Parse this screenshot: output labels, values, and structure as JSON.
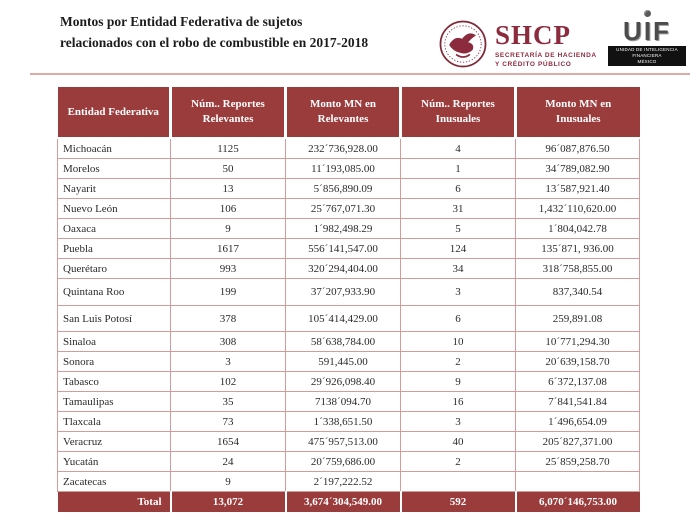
{
  "header": {
    "title_line1": "Montos por Entidad Federativa de sujetos",
    "title_line2": "relacionados con el robo de combustible en 2017-2018",
    "shcp": {
      "acronym": "SHCP",
      "subtitle_line1": "SECRETARÍA DE HACIENDA",
      "subtitle_line2": "Y CRÉDITO PÚBLICO"
    },
    "uif": {
      "acronym": "UIF",
      "bar_line1": "UNIDAD DE INTELIGENCIA FINANCIERA",
      "bar_line2": "MÉXICO"
    }
  },
  "colors": {
    "header_bg": "#9A3C3C",
    "cell_border": "#D79A9A",
    "maroon": "#8C2B3D",
    "divider": "#E2A9A9"
  },
  "table": {
    "columns": [
      "Entidad Federativa",
      "Núm.. Reportes Relevantes",
      "Monto MN en Relevantes",
      "Núm.. Reportes Inusuales",
      "Monto MN en Inusuales"
    ],
    "rows": [
      [
        "Michoacán",
        "1125",
        "232´736,928.00",
        "4",
        "96´087,876.50"
      ],
      [
        "Morelos",
        "50",
        "11´193,085.00",
        "1",
        "34´789,082.90"
      ],
      [
        "Nayarit",
        "13",
        "5´856,890.09",
        "6",
        "13´587,921.40"
      ],
      [
        "Nuevo León",
        "106",
        "25´767,071.30",
        "31",
        "1,432´110,620.00"
      ],
      [
        "Oaxaca",
        "9",
        "1´982,498.29",
        "5",
        "1´804,042.78"
      ],
      [
        "Puebla",
        "1617",
        "556´141,547.00",
        "124",
        "135´871, 936.00"
      ],
      [
        "Querétaro",
        "993",
        "320´294,404.00",
        "34",
        "318´758,855.00"
      ],
      [
        "Quintana Roo",
        "199",
        "37´207,933.90",
        "3",
        "837,340.54"
      ],
      [
        "San Luis Potosí",
        "378",
        "105´414,429.00",
        "6",
        "259,891.08"
      ],
      [
        "Sinaloa",
        "308",
        "58´638,784.00",
        "10",
        "10´771,294.30"
      ],
      [
        "Sonora",
        "3",
        "591,445.00",
        "2",
        "20´639,158.70"
      ],
      [
        "Tabasco",
        "102",
        "29´926,098.40",
        "9",
        "6´372,137.08"
      ],
      [
        "Tamaulipas",
        "35",
        "7138´094.70",
        "16",
        "7´841,541.84"
      ],
      [
        "Tlaxcala",
        "73",
        "1´338,651.50",
        "3",
        "1´496,654.09"
      ],
      [
        "Veracruz",
        "1654",
        "475´957,513.00",
        "40",
        "205´827,371.00"
      ],
      [
        "Yucatán",
        "24",
        "20´759,686.00",
        "2",
        "25´859,258.70"
      ],
      [
        "Zacatecas",
        "9",
        "2´197,222.52",
        "",
        ""
      ]
    ],
    "total": [
      "Total",
      "13,072",
      "3,674´304,549.00",
      "592",
      "6,070´146,753.00"
    ]
  }
}
